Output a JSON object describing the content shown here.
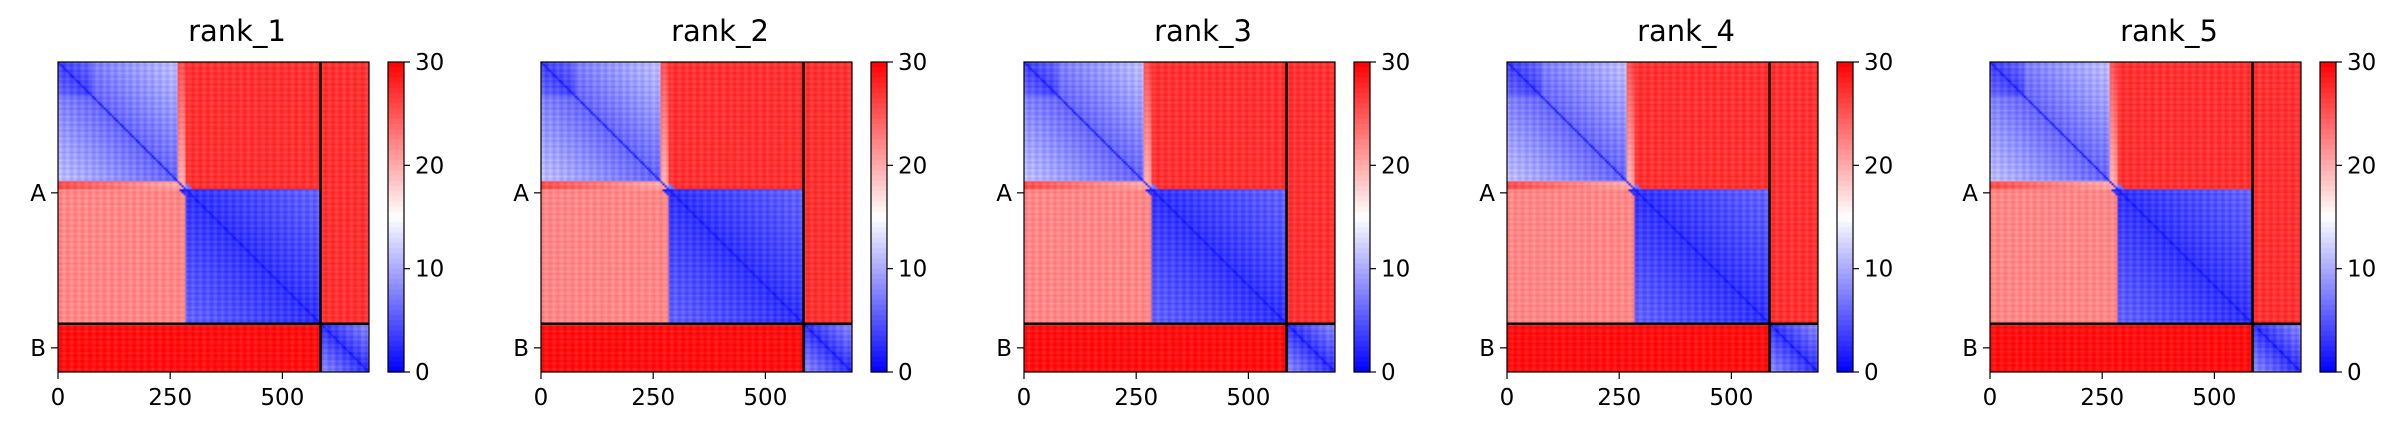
{
  "figure": {
    "colors": {
      "low": "#0000ff",
      "mid": "#ffffff",
      "high": "#ff0000",
      "chain_divider": "#000000"
    }
  },
  "chart_data": [
    {
      "type": "heatmap",
      "title": "rank_1",
      "xlabel": "",
      "ylabel": "",
      "x_ticks": [
        "0",
        "250",
        "500"
      ],
      "x_tick_values": [
        0,
        250,
        500
      ],
      "y_ticks": [
        "A",
        "B"
      ],
      "xlim": [
        0,
        693
      ],
      "chains": [
        {
          "name": "A",
          "length": 585
        },
        {
          "name": "B",
          "length": 108
        }
      ],
      "colorbar": {
        "min": 0,
        "max": 30,
        "ticks": [
          "0",
          "10",
          "20",
          "30"
        ],
        "tick_values": [
          0,
          10,
          20,
          30
        ],
        "colormap": "bwr"
      }
    },
    {
      "type": "heatmap",
      "title": "rank_2",
      "xlabel": "",
      "ylabel": "",
      "x_ticks": [
        "0",
        "250",
        "500"
      ],
      "x_tick_values": [
        0,
        250,
        500
      ],
      "y_ticks": [
        "A",
        "B"
      ],
      "xlim": [
        0,
        693
      ],
      "chains": [
        {
          "name": "A",
          "length": 585
        },
        {
          "name": "B",
          "length": 108
        }
      ],
      "colorbar": {
        "min": 0,
        "max": 30,
        "ticks": [
          "0",
          "10",
          "20",
          "30"
        ],
        "tick_values": [
          0,
          10,
          20,
          30
        ],
        "colormap": "bwr"
      }
    },
    {
      "type": "heatmap",
      "title": "rank_3",
      "xlabel": "",
      "ylabel": "",
      "x_ticks": [
        "0",
        "250",
        "500"
      ],
      "x_tick_values": [
        0,
        250,
        500
      ],
      "y_ticks": [
        "A",
        "B"
      ],
      "xlim": [
        0,
        693
      ],
      "chains": [
        {
          "name": "A",
          "length": 585
        },
        {
          "name": "B",
          "length": 108
        }
      ],
      "colorbar": {
        "min": 0,
        "max": 30,
        "ticks": [
          "0",
          "10",
          "20",
          "30"
        ],
        "tick_values": [
          0,
          10,
          20,
          30
        ],
        "colormap": "bwr"
      }
    },
    {
      "type": "heatmap",
      "title": "rank_4",
      "xlabel": "",
      "ylabel": "",
      "x_ticks": [
        "0",
        "250",
        "500"
      ],
      "x_tick_values": [
        0,
        250,
        500
      ],
      "y_ticks": [
        "A",
        "B"
      ],
      "xlim": [
        0,
        693
      ],
      "chains": [
        {
          "name": "A",
          "length": 585
        },
        {
          "name": "B",
          "length": 108
        }
      ],
      "colorbar": {
        "min": 0,
        "max": 30,
        "ticks": [
          "0",
          "10",
          "20",
          "30"
        ],
        "tick_values": [
          0,
          10,
          20,
          30
        ],
        "colormap": "bwr"
      }
    },
    {
      "type": "heatmap",
      "title": "rank_5",
      "xlabel": "",
      "ylabel": "",
      "x_ticks": [
        "0",
        "250",
        "500"
      ],
      "x_tick_values": [
        0,
        250,
        500
      ],
      "y_ticks": [
        "A",
        "B"
      ],
      "xlim": [
        0,
        693
      ],
      "chains": [
        {
          "name": "A",
          "length": 585
        },
        {
          "name": "B",
          "length": 108
        }
      ],
      "colorbar": {
        "min": 0,
        "max": 30,
        "ticks": [
          "0",
          "10",
          "20",
          "30"
        ],
        "tick_values": [
          0,
          10,
          20,
          30
        ],
        "colormap": "bwr"
      }
    }
  ]
}
